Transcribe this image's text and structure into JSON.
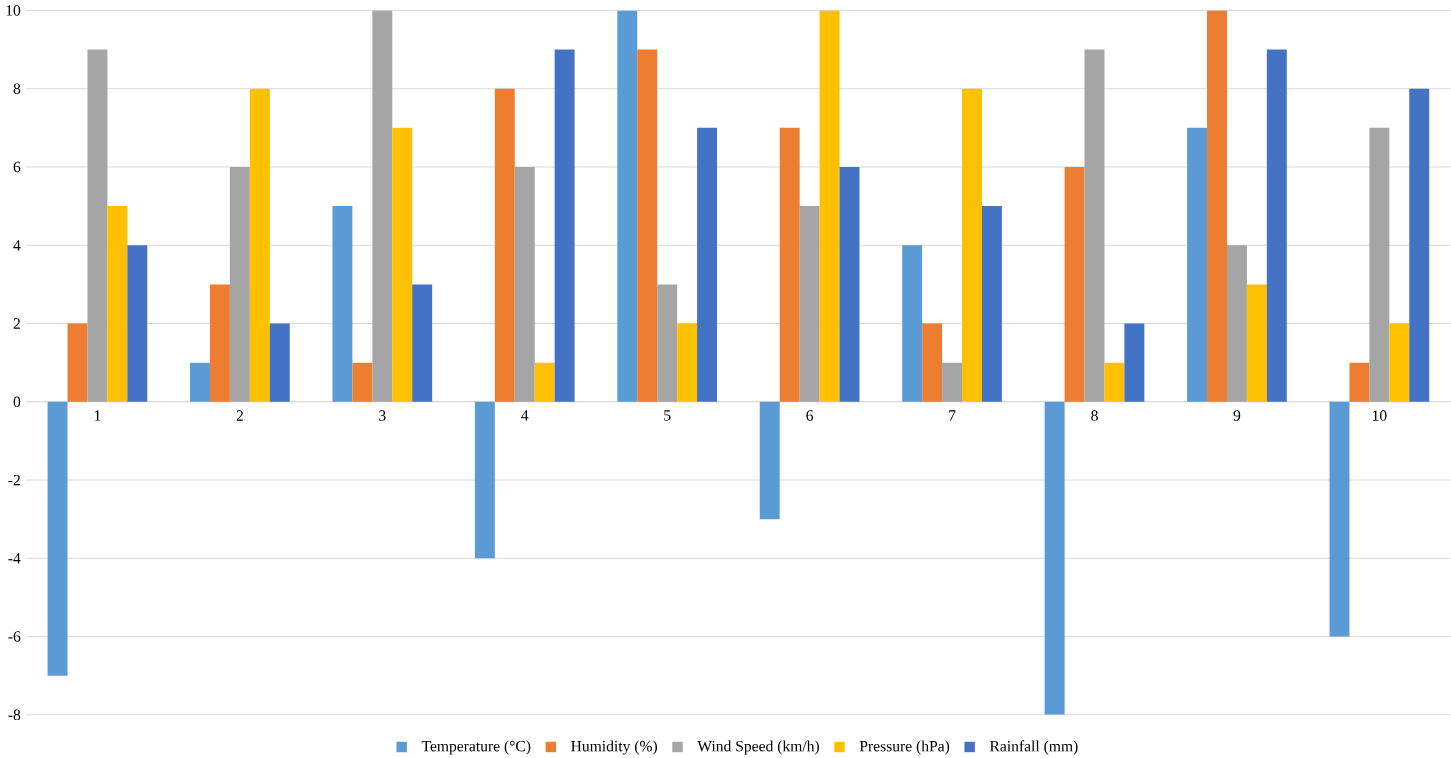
{
  "chart_data": {
    "type": "bar",
    "categories": [
      "1",
      "2",
      "3",
      "4",
      "5",
      "6",
      "7",
      "8",
      "9",
      "10"
    ],
    "series": [
      {
        "name": "Temperature (°C)",
        "color": "#5b9bd5",
        "values": [
          -7,
          1,
          5,
          -4,
          10,
          -3,
          4,
          -8,
          7,
          -6
        ]
      },
      {
        "name": "Humidity (%)",
        "color": "#ed7d31",
        "values": [
          2,
          3,
          1,
          8,
          9,
          7,
          2,
          6,
          10,
          1
        ]
      },
      {
        "name": "Wind Speed (km/h)",
        "color": "#a5a5a5",
        "values": [
          9,
          6,
          10,
          6,
          3,
          5,
          1,
          9,
          4,
          7
        ]
      },
      {
        "name": "Pressure (hPa)",
        "color": "#ffc000",
        "values": [
          5,
          8,
          7,
          1,
          2,
          10,
          8,
          1,
          3,
          2
        ]
      },
      {
        "name": "Rainfall (mm)",
        "color": "#4472c4",
        "values": [
          4,
          2,
          3,
          9,
          7,
          6,
          5,
          2,
          9,
          8
        ]
      }
    ],
    "ylim": [
      -8,
      10
    ],
    "yticks": [
      -8,
      -6,
      -4,
      -2,
      0,
      2,
      4,
      6,
      8,
      10
    ],
    "grid": "y",
    "legend": "bottom"
  }
}
